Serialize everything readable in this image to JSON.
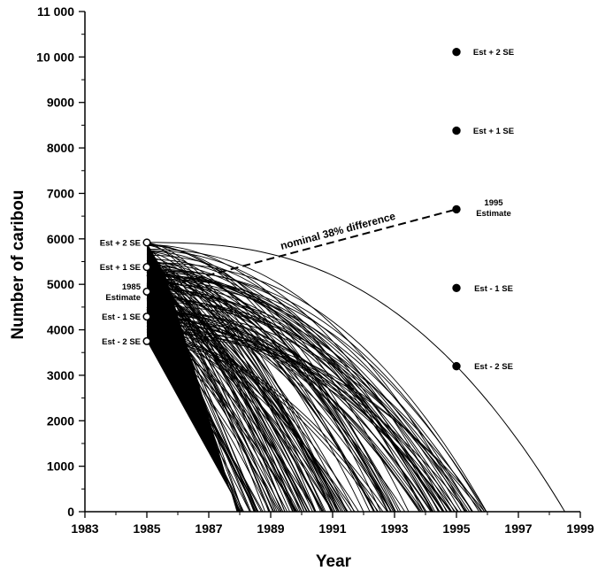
{
  "chart_data": {
    "type": "line",
    "title": "",
    "xlabel": "Year",
    "ylabel": "Number of caribou",
    "xlim": [
      1983,
      1999
    ],
    "ylim": [
      0,
      11000
    ],
    "x_ticks": [
      1983,
      1985,
      1987,
      1989,
      1991,
      1993,
      1995,
      1997,
      1999
    ],
    "x_tick_labels": [
      "1983",
      "1985",
      "1987",
      "1989",
      "1991",
      "1993",
      "1995",
      "1997",
      "1999"
    ],
    "y_ticks": [
      0,
      1000,
      2000,
      3000,
      4000,
      5000,
      6000,
      7000,
      8000,
      9000,
      10000,
      11000
    ],
    "y_tick_labels": [
      "0",
      "1000",
      "2000",
      "3000",
      "4000",
      "5000",
      "6000",
      "7000",
      "8000",
      "9000",
      "10 000",
      "11 000"
    ],
    "grid": false,
    "points_1985": [
      {
        "label": "Est + 2 SE",
        "x": 1985,
        "y": 5920,
        "marker": "open"
      },
      {
        "label": "Est + 1 SE",
        "x": 1985,
        "y": 5380,
        "marker": "open"
      },
      {
        "label": "1985\nEstimate",
        "x": 1985,
        "y": 4840,
        "marker": "open"
      },
      {
        "label": "Est - 1 SE",
        "x": 1985,
        "y": 4290,
        "marker": "open"
      },
      {
        "label": "Est - 2 SE",
        "x": 1985,
        "y": 3750,
        "marker": "open"
      }
    ],
    "points_1995": [
      {
        "label": "Est + 2 SE",
        "x": 1995,
        "y": 10110,
        "marker": "filled"
      },
      {
        "label": "Est + 1 SE",
        "x": 1995,
        "y": 8380,
        "marker": "filled"
      },
      {
        "label": "1995\nEstimate",
        "x": 1995,
        "y": 6650,
        "marker": "filled"
      },
      {
        "label": "Est - 1 SE",
        "x": 1995,
        "y": 4920,
        "marker": "filled"
      },
      {
        "label": "Est - 2 SE",
        "x": 1995,
        "y": 3200,
        "marker": "filled"
      }
    ],
    "annotation": {
      "text": "nominal 38% difference",
      "from": {
        "x": 1985,
        "y": 4840
      },
      "to": {
        "x": 1995,
        "y": 6650
      },
      "style": "dashed"
    },
    "projection_curves": {
      "description_of_family": "many simulated decline trajectories from 1985 starting values to zero",
      "start_x": 1985,
      "start_y_range": [
        3750,
        5920
      ],
      "end_x_range": [
        1988.0,
        1996.0
      ],
      "outlier_curve": {
        "start": [
          1985,
          5920
        ],
        "through": [
          1995,
          3200
        ],
        "end_x": 1998.5
      }
    }
  }
}
